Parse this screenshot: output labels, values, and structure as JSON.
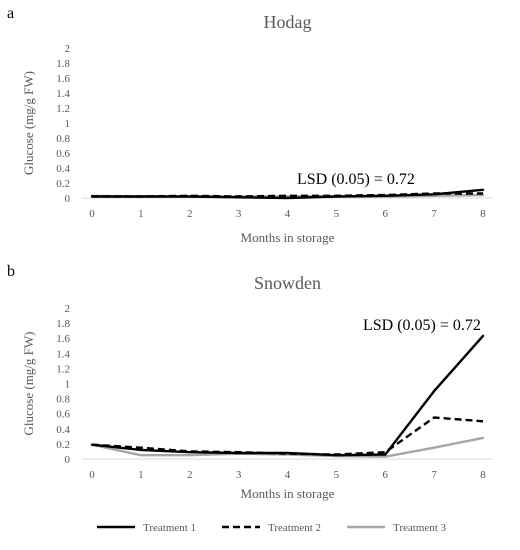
{
  "figure": {
    "legend": [
      {
        "label": "Treatment 1",
        "color": "#000000",
        "dash": "solid"
      },
      {
        "label": "Treatment 2",
        "color": "#000000",
        "dash": "dashed"
      },
      {
        "label": "Treatment 3",
        "color": "#a6a6a6",
        "dash": "solid"
      }
    ]
  },
  "chart_data": [
    {
      "type": "line",
      "panel_letter": "a",
      "title": "Hodag",
      "xlabel": "Months in storage",
      "ylabel": "Glucose (mg/g FW)",
      "x": [
        0,
        1,
        2,
        3,
        4,
        5,
        6,
        7,
        8
      ],
      "xticks": [
        "0",
        "1",
        "2",
        "3",
        "4",
        "5",
        "6",
        "7",
        "8"
      ],
      "yticks": [
        "0",
        "0.2",
        "0.4",
        "0.6",
        "0.8",
        "1",
        "1.2",
        "1.4",
        "1.6",
        "1.8",
        "2"
      ],
      "ylim": [
        0,
        2
      ],
      "grid": false,
      "annotation": "LSD (0.05) = 0.72",
      "series": [
        {
          "name": "Treatment 1",
          "values": [
            0.02,
            0.02,
            0.02,
            0.01,
            0.0,
            0.02,
            0.03,
            0.05,
            0.11
          ]
        },
        {
          "name": "Treatment 2",
          "values": [
            0.02,
            0.02,
            0.03,
            0.02,
            0.03,
            0.03,
            0.04,
            0.06,
            0.06
          ]
        },
        {
          "name": "Treatment 3",
          "values": [
            0.03,
            0.02,
            0.02,
            0.02,
            0.02,
            0.02,
            0.02,
            0.03,
            0.04
          ]
        }
      ]
    },
    {
      "type": "line",
      "panel_letter": "b",
      "title": "Snowden",
      "xlabel": "Months in storage",
      "ylabel": "Glucose (mg/g FW)",
      "x": [
        0,
        1,
        2,
        3,
        4,
        5,
        6,
        7,
        8
      ],
      "xticks": [
        "0",
        "1",
        "2",
        "3",
        "4",
        "5",
        "6",
        "7",
        "8"
      ],
      "yticks": [
        "0",
        "0.2",
        "0.4",
        "0.6",
        "0.8",
        "1",
        "1.2",
        "1.4",
        "1.6",
        "1.8",
        "2"
      ],
      "ylim": [
        0,
        2
      ],
      "grid": false,
      "annotation": "LSD (0.05) = 0.72",
      "series": [
        {
          "name": "Treatment 1",
          "values": [
            0.19,
            0.12,
            0.09,
            0.08,
            0.08,
            0.05,
            0.06,
            0.9,
            1.63
          ]
        },
        {
          "name": "Treatment 2",
          "values": [
            0.19,
            0.15,
            0.1,
            0.09,
            0.07,
            0.06,
            0.09,
            0.55,
            0.5
          ]
        },
        {
          "name": "Treatment 3",
          "values": [
            0.19,
            0.05,
            0.05,
            0.07,
            0.06,
            0.04,
            0.03,
            0.15,
            0.28
          ]
        }
      ]
    }
  ]
}
